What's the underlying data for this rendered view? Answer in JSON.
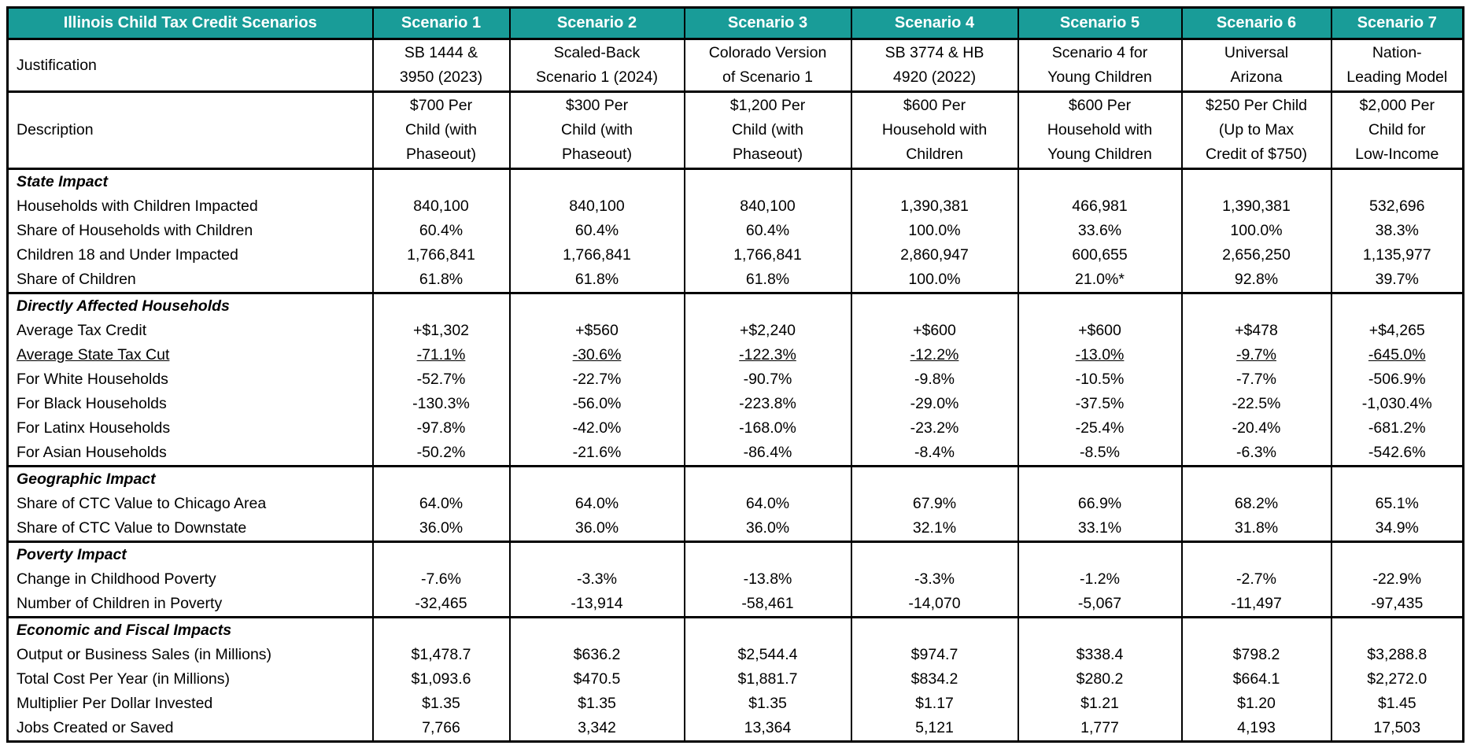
{
  "colors": {
    "header_bg": "#199c98",
    "header_text": "#ffffff",
    "border": "#000000"
  },
  "header": {
    "title": "Illinois Child Tax Credit Scenarios",
    "columns": [
      "Scenario 1",
      "Scenario 2",
      "Scenario 3",
      "Scenario 4",
      "Scenario 5",
      "Scenario 6",
      "Scenario 7"
    ]
  },
  "justification": {
    "label": "Justification",
    "values": [
      "SB 1444 &\n3950 (2023)",
      "Scaled-Back\nScenario 1 (2024)",
      "Colorado Version\nof Scenario 1",
      "SB 3774 & HB\n4920 (2022)",
      "Scenario 4 for\nYoung Children",
      "Universal\nArizona",
      "Nation-\nLeading Model"
    ]
  },
  "description": {
    "label": "Description",
    "values": [
      "$700 Per\nChild (with\nPhaseout)",
      "$300 Per\nChild (with\nPhaseout)",
      "$1,200 Per\nChild (with\nPhaseout)",
      "$600 Per\nHousehold with\nChildren",
      "$600 Per\nHousehold with\nYoung Children",
      "$250 Per Child\n(Up to Max\nCredit of $750)",
      "$2,000 Per\nChild for\nLow-Income"
    ]
  },
  "sections": [
    {
      "title": "State Impact",
      "rows": [
        {
          "label": "Households with Children Impacted",
          "values": [
            "840,100",
            "840,100",
            "840,100",
            "1,390,381",
            "466,981",
            "1,390,381",
            "532,696"
          ]
        },
        {
          "label": "Share of Households with Children",
          "values": [
            "60.4%",
            "60.4%",
            "60.4%",
            "100.0%",
            "33.6%",
            "100.0%",
            "38.3%"
          ]
        },
        {
          "label": "Children 18 and Under Impacted",
          "values": [
            "1,766,841",
            "1,766,841",
            "1,766,841",
            "2,860,947",
            "600,655",
            "2,656,250",
            "1,135,977"
          ]
        },
        {
          "label": "Share of Children",
          "values": [
            "61.8%",
            "61.8%",
            "61.8%",
            "100.0%",
            "21.0%*",
            "92.8%",
            "39.7%"
          ]
        }
      ]
    },
    {
      "title": "Directly Affected Households",
      "rows": [
        {
          "label": "Average Tax Credit",
          "values": [
            "+$1,302",
            "+$560",
            "+$2,240",
            "+$600",
            "+$600",
            "+$478",
            "+$4,265"
          ]
        },
        {
          "label": "Average State Tax Cut",
          "underline": true,
          "values": [
            "-71.1%",
            "-30.6%",
            "-122.3%",
            "-12.2%",
            "-13.0%",
            "-9.7%",
            "-645.0%"
          ]
        },
        {
          "label": "For White Households",
          "values": [
            "-52.7%",
            "-22.7%",
            "-90.7%",
            "-9.8%",
            "-10.5%",
            "-7.7%",
            "-506.9%"
          ]
        },
        {
          "label": "For Black Households",
          "values": [
            "-130.3%",
            "-56.0%",
            "-223.8%",
            "-29.0%",
            "-37.5%",
            "-22.5%",
            "-1,030.4%"
          ]
        },
        {
          "label": "For Latinx Households",
          "values": [
            "-97.8%",
            "-42.0%",
            "-168.0%",
            "-23.2%",
            "-25.4%",
            "-20.4%",
            "-681.2%"
          ]
        },
        {
          "label": "For Asian Households",
          "values": [
            "-50.2%",
            "-21.6%",
            "-86.4%",
            "-8.4%",
            "-8.5%",
            "-6.3%",
            "-542.6%"
          ]
        }
      ]
    },
    {
      "title": "Geographic Impact",
      "rows": [
        {
          "label": "Share of CTC Value to Chicago Area",
          "values": [
            "64.0%",
            "64.0%",
            "64.0%",
            "67.9%",
            "66.9%",
            "68.2%",
            "65.1%"
          ]
        },
        {
          "label": "Share of CTC Value to Downstate",
          "values": [
            "36.0%",
            "36.0%",
            "36.0%",
            "32.1%",
            "33.1%",
            "31.8%",
            "34.9%"
          ]
        }
      ]
    },
    {
      "title": "Poverty Impact",
      "rows": [
        {
          "label": "Change in Childhood Poverty",
          "values": [
            "-7.6%",
            "-3.3%",
            "-13.8%",
            "-3.3%",
            "-1.2%",
            "-2.7%",
            "-22.9%"
          ]
        },
        {
          "label": "Number of Children in Poverty",
          "values": [
            "-32,465",
            "-13,914",
            "-58,461",
            "-14,070",
            "-5,067",
            "-11,497",
            "-97,435"
          ]
        }
      ]
    },
    {
      "title": "Economic and Fiscal Impacts",
      "rows": [
        {
          "label": "Output or Business Sales (in Millions)",
          "values": [
            "$1,478.7",
            "$636.2",
            "$2,544.4",
            "$974.7",
            "$338.4",
            "$798.2",
            "$3,288.8"
          ]
        },
        {
          "label": "Total Cost Per Year (in Millions)",
          "values": [
            "$1,093.6",
            "$470.5",
            "$1,881.7",
            "$834.2",
            "$280.2",
            "$664.1",
            "$2,272.0"
          ]
        },
        {
          "label": "Multiplier Per Dollar Invested",
          "values": [
            "$1.35",
            "$1.35",
            "$1.35",
            "$1.17",
            "$1.21",
            "$1.20",
            "$1.45"
          ]
        },
        {
          "label": "Jobs Created or Saved",
          "values": [
            "7,766",
            "3,342",
            "13,364",
            "5,121",
            "1,777",
            "4,193",
            "17,503"
          ]
        }
      ]
    }
  ]
}
